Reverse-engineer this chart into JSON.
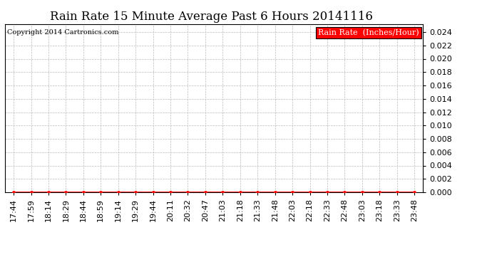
{
  "title": "Rain Rate 15 Minute Average Past 6 Hours 20141116",
  "legend_label": "Rain Rate  (Inches/Hour)",
  "copyright_text": "Copyright 2014 Cartronics.com",
  "x_labels": [
    "17:44",
    "17:59",
    "18:14",
    "18:29",
    "18:44",
    "18:59",
    "19:14",
    "19:29",
    "19:44",
    "20:11",
    "20:32",
    "20:47",
    "21:03",
    "21:18",
    "21:33",
    "21:48",
    "22:03",
    "22:18",
    "22:33",
    "22:48",
    "23:03",
    "23:18",
    "23:33",
    "23:48"
  ],
  "y_values": [
    0,
    0,
    0,
    0,
    0,
    0,
    0,
    0,
    0,
    0,
    0,
    0,
    0,
    0,
    0,
    0,
    0,
    0,
    0,
    0,
    0,
    0,
    0,
    0
  ],
  "y_min": 0,
  "y_max": 0.0252,
  "y_ticks": [
    0.0,
    0.002,
    0.004,
    0.006,
    0.008,
    0.01,
    0.012,
    0.014,
    0.016,
    0.018,
    0.02,
    0.022,
    0.024
  ],
  "line_color": "#ff0000",
  "marker": "o",
  "marker_size": 2.5,
  "grid_color": "#bbbbbb",
  "background_color": "#ffffff",
  "title_fontsize": 12,
  "tick_fontsize": 8,
  "copyright_fontsize": 7,
  "legend_bg_color": "#ff0000",
  "legend_text_color": "#ffffff"
}
